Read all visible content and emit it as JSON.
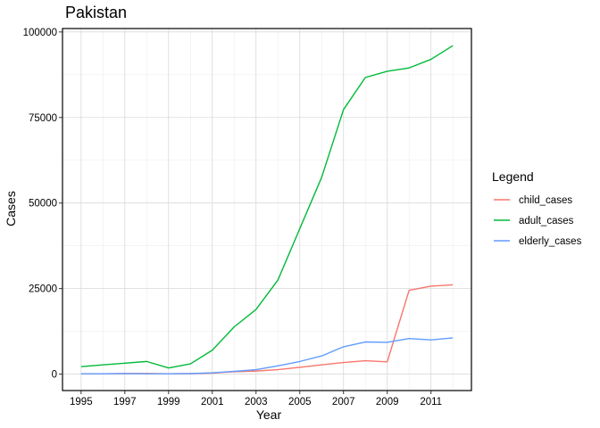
{
  "chart_data": {
    "type": "line",
    "title": "Pakistan",
    "xlabel": "Year",
    "ylabel": "Cases",
    "x": [
      1995,
      1996,
      1997,
      1998,
      1999,
      2000,
      2001,
      2002,
      2003,
      2004,
      2005,
      2006,
      2007,
      2008,
      2009,
      2010,
      2011,
      2012
    ],
    "xlim": [
      1994.15,
      2012.85
    ],
    "ylim": [
      -4800,
      101000
    ],
    "xticks": [
      1995,
      1997,
      1999,
      2001,
      2003,
      2005,
      2007,
      2009,
      2011
    ],
    "xtick_labels": [
      "1995",
      "1997",
      "1999",
      "2001",
      "2003",
      "2005",
      "2007",
      "2009",
      "2011"
    ],
    "yticks": [
      0,
      25000,
      50000,
      75000,
      100000
    ],
    "ytick_labels": [
      "0",
      "25000",
      "50000",
      "75000",
      "100000"
    ],
    "grid": true,
    "legend": {
      "title": "Legend",
      "position": "right"
    },
    "series": [
      {
        "name": "child_cases",
        "color": "#F8766D",
        "values": [
          100,
          100,
          150,
          200,
          100,
          150,
          300,
          700,
          900,
          1300,
          2000,
          2700,
          3400,
          3900,
          3600,
          24500,
          25700,
          26100
        ]
      },
      {
        "name": "adult_cases",
        "color": "#00BA38",
        "values": [
          2200,
          2700,
          3200,
          3700,
          1800,
          3000,
          7000,
          13800,
          18900,
          27500,
          42500,
          57500,
          77300,
          86700,
          88500,
          89500,
          92000,
          96000
        ]
      },
      {
        "name": "elderly_cases",
        "color": "#619CFF",
        "values": [
          100,
          100,
          150,
          100,
          100,
          150,
          400,
          800,
          1300,
          2400,
          3700,
          5300,
          8000,
          9400,
          9300,
          10400,
          10000,
          10600
        ]
      }
    ]
  }
}
